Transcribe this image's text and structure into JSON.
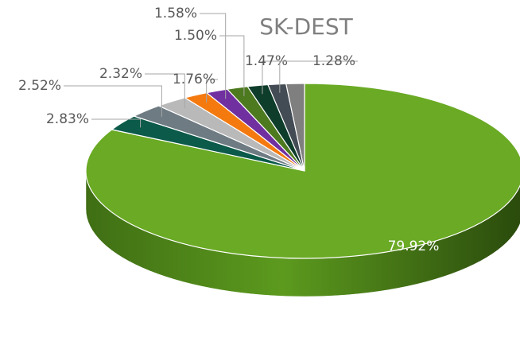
{
  "chart_data": {
    "type": "pie3d",
    "title": "SK-DEST",
    "values": [
      79.92,
      2.83,
      2.52,
      2.32,
      1.76,
      1.58,
      1.5,
      1.47,
      1.28,
      1.3
    ],
    "value_labels": [
      "79.92%",
      "2.83%",
      "2.52%",
      "2.32%",
      "1.76%",
      "1.58%",
      "1.50%",
      "1.47%",
      "1.28%",
      null
    ],
    "colors": [
      "#6aaa24",
      "#0b5a4a",
      "#6e7b83",
      "#b9b9b9",
      "#f47a10",
      "#7030a0",
      "#4d7a1e",
      "#0f3d2b",
      "#434c55",
      "#7f7f7f"
    ]
  }
}
